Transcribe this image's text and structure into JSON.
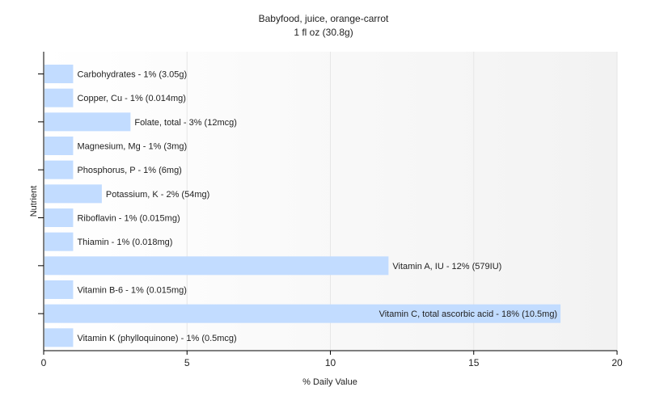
{
  "chart_title": "Babyfood, juice, orange-carrot",
  "chart_subtitle": "1 fl oz (30.8g)",
  "chart_data": {
    "type": "bar",
    "orientation": "horizontal",
    "title": "Babyfood, juice, orange-carrot",
    "subtitle": "1 fl oz (30.8g)",
    "xlabel": "% Daily Value",
    "ylabel": "Nutrient",
    "xlim": [
      0,
      20
    ],
    "xticks": [
      0,
      5,
      10,
      15,
      20
    ],
    "grid": true,
    "bar_color": "#c2dcff",
    "categories": [
      "Carbohydrates",
      "Copper, Cu",
      "Folate, total",
      "Magnesium, Mg",
      "Phosphorus, P",
      "Potassium, K",
      "Riboflavin",
      "Thiamin",
      "Vitamin A, IU",
      "Vitamin B-6",
      "Vitamin C, total ascorbic acid",
      "Vitamin K (phylloquinone)"
    ],
    "values": [
      1,
      1,
      3,
      1,
      1,
      2,
      1,
      1,
      12,
      1,
      18,
      1
    ],
    "labels": [
      "Carbohydrates - 1% (3.05g)",
      "Copper, Cu - 1% (0.014mg)",
      "Folate, total - 3% (12mcg)",
      "Magnesium, Mg - 1% (3mg)",
      "Phosphorus, P - 1% (6mg)",
      "Potassium, K - 2% (54mg)",
      "Riboflavin - 1% (0.015mg)",
      "Thiamin - 1% (0.018mg)",
      "Vitamin A, IU - 12% (579IU)",
      "Vitamin B-6 - 1% (0.015mg)",
      "Vitamin C, total ascorbic acid - 18% (10.5mg)",
      "Vitamin K (phylloquinone) - 1% (0.5mcg)"
    ]
  }
}
